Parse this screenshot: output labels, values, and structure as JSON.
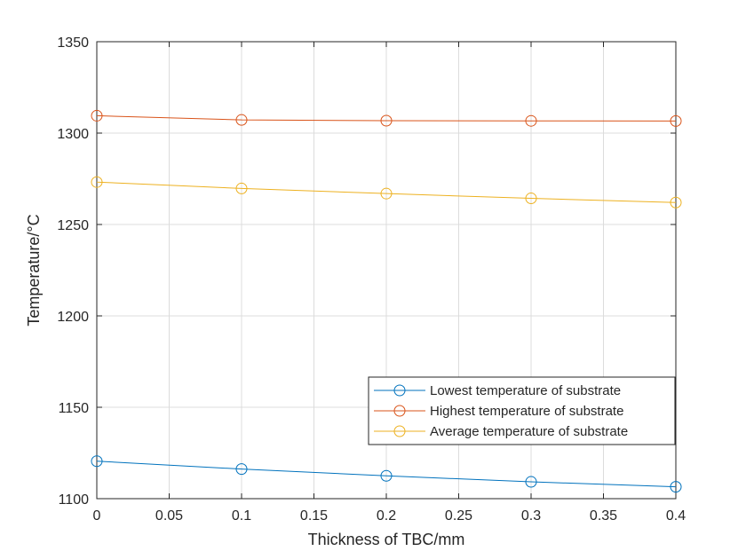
{
  "chart_data": {
    "type": "line",
    "title": "",
    "xlabel": "Thickness of TBC/mm",
    "ylabel": "Temperature/°C",
    "xlim": [
      0,
      0.4
    ],
    "ylim": [
      1100,
      1350
    ],
    "x_ticks": [
      "0",
      "0.05",
      "0.1",
      "0.15",
      "0.2",
      "0.25",
      "0.3",
      "0.35",
      "0.4"
    ],
    "y_ticks": [
      "1100",
      "1150",
      "1200",
      "1250",
      "1300",
      "1350"
    ],
    "grid": true,
    "legend_position": "lower-right",
    "x": [
      0,
      0.1,
      0.2,
      0.3,
      0.4
    ],
    "series": [
      {
        "name": "Lowest temperature of substrate",
        "color": "#0072BD",
        "marker": "circle",
        "values": [
          1120.5,
          1116.2,
          1112.5,
          1109.2,
          1106.5
        ]
      },
      {
        "name": "Highest temperature of substrate",
        "color": "#D95319",
        "marker": "circle",
        "values": [
          1309.5,
          1307.2,
          1306.8,
          1306.7,
          1306.6
        ]
      },
      {
        "name": "Average temperature of substrate",
        "color": "#EDB120",
        "marker": "circle",
        "values": [
          1273.2,
          1269.7,
          1266.9,
          1264.3,
          1262.0
        ]
      }
    ]
  }
}
